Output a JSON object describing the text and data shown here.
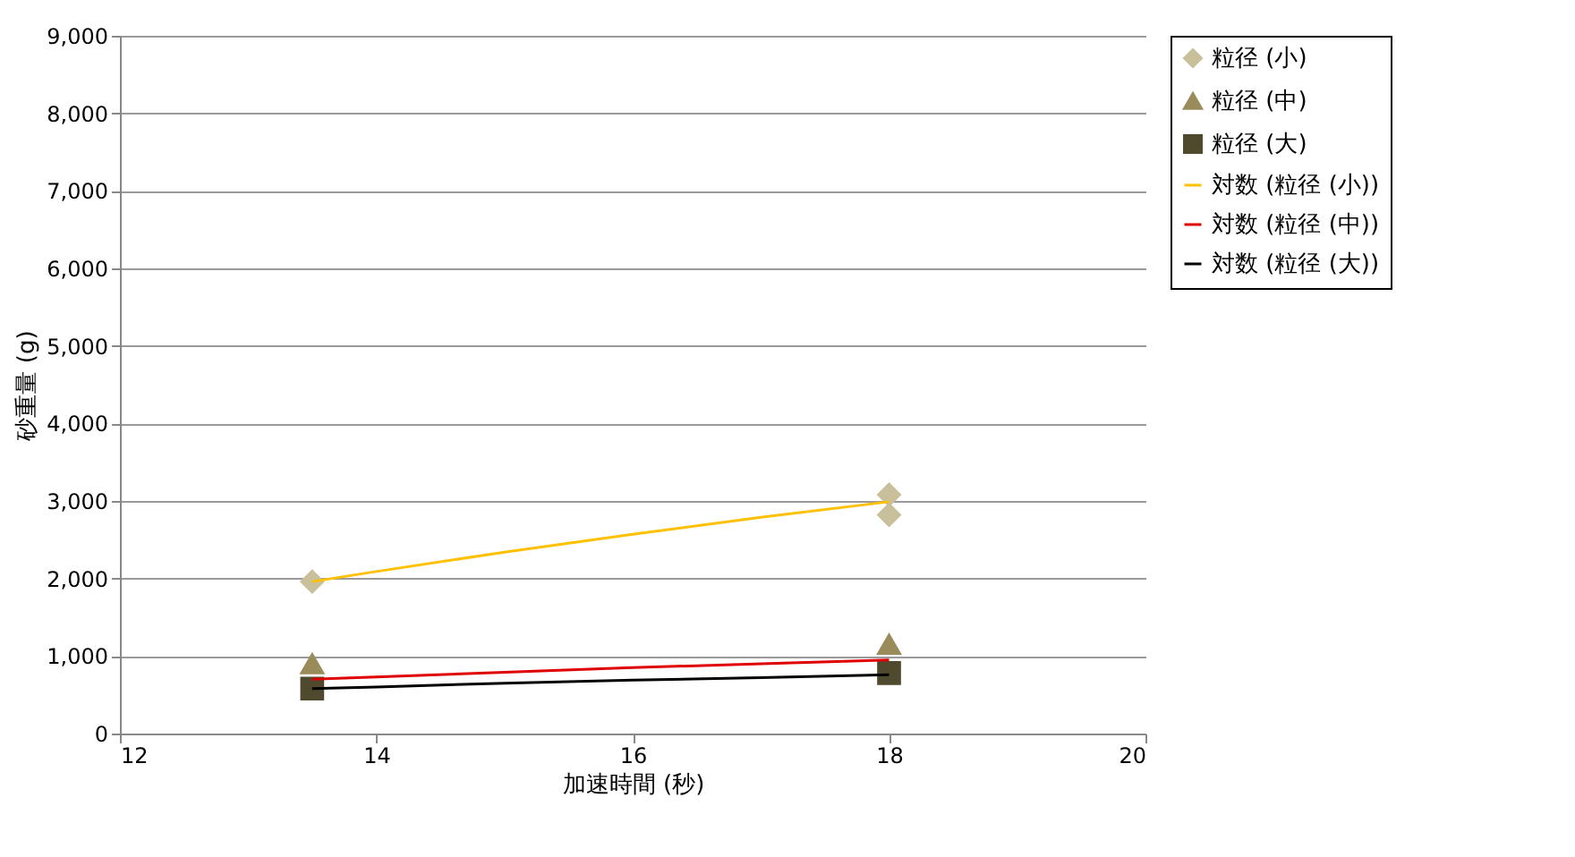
{
  "chart_data": {
    "type": "scatter",
    "xlabel": "加速時間 (秒)",
    "ylabel": "砂重量 (g)",
    "xlim": [
      12,
      20
    ],
    "xticks": [
      12,
      14,
      16,
      18,
      20
    ],
    "ylim": [
      0,
      9000
    ],
    "yticks": [
      0,
      {
        "value": 1000,
        "label": "1,000"
      },
      {
        "value": 2000,
        "label": "2,000"
      },
      {
        "value": 3000,
        "label": "3,000"
      },
      {
        "value": 4000,
        "label": "4,000"
      },
      {
        "value": 5000,
        "label": "5,000"
      },
      {
        "value": 6000,
        "label": "6,000"
      },
      {
        "value": 7000,
        "label": "7,000"
      },
      {
        "value": 8000,
        "label": "8,000"
      },
      {
        "value": 9000,
        "label": "9,000"
      }
    ],
    "grid": "y",
    "legend": "top right",
    "series": [
      {
        "name": "粒径 (小)",
        "type": "scatter",
        "marker": "diamond",
        "color": "#c8c09a",
        "x": [
          13.5,
          18,
          18
        ],
        "values": [
          1960,
          3080,
          2820
        ]
      },
      {
        "name": "粒径 (中)",
        "type": "scatter",
        "marker": "triangle",
        "color": "#9a8c5a",
        "x": [
          13.5,
          18
        ],
        "values": [
          900,
          1150
        ]
      },
      {
        "name": "粒径 (大)",
        "type": "scatter",
        "marker": "square",
        "color": "#4f4a2e",
        "x": [
          13.5,
          18
        ],
        "values": [
          580,
          780
        ]
      },
      {
        "name": "対数 (粒径 (小))",
        "type": "line",
        "line_style": "solid",
        "color": "#ffc000",
        "x": [
          13.5,
          14,
          15,
          16,
          17,
          18
        ],
        "values": [
          1960,
          2090,
          2340,
          2570,
          2790,
          2990
        ]
      },
      {
        "name": "対数 (粒径 (中))",
        "type": "line",
        "line_style": "solid",
        "color": "#e00000",
        "x": [
          13.5,
          14,
          15,
          16,
          17,
          18
        ],
        "values": [
          700,
          730,
          790,
          850,
          900,
          950
        ]
      },
      {
        "name": "対数 (粒径 (大))",
        "type": "line",
        "line_style": "solid",
        "color": "#000000",
        "x": [
          13.5,
          14,
          15,
          16,
          17,
          18
        ],
        "values": [
          580,
          600,
          650,
          690,
          720,
          760
        ]
      }
    ]
  }
}
